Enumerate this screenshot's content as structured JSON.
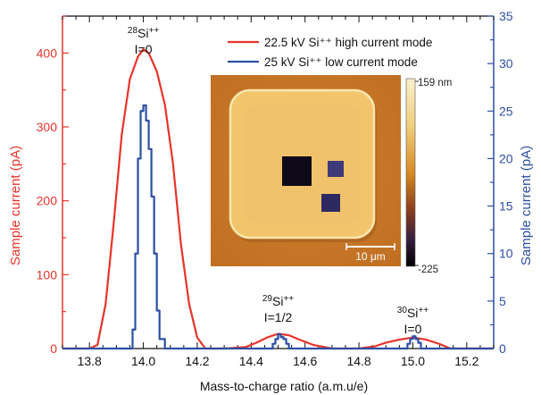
{
  "chart_data": {
    "type": "line",
    "xlabel": "Mass-to-charge ratio (a.m.u/e)",
    "ylabel_left": "Sample current (pA)",
    "ylabel_right": "Sample current (pA)",
    "xlim": [
      13.7,
      15.3
    ],
    "ylim_left": [
      0,
      450
    ],
    "ylim_right": [
      0,
      35
    ],
    "x_ticks": [
      "13.8",
      "14.0",
      "14.2",
      "14.4",
      "14.6",
      "14.8",
      "15.0",
      "15.2"
    ],
    "y_ticks_left": [
      "0",
      "100",
      "200",
      "300",
      "400"
    ],
    "y_ticks_right": [
      "0",
      "5",
      "10",
      "15",
      "20",
      "25",
      "30",
      "35"
    ],
    "legend_position": "top-right",
    "colors": {
      "red": "#e8332a",
      "blue": "#2c4fa3"
    },
    "series": [
      {
        "name": "22.5 kV Si⁺⁺ high current mode",
        "axis": "left",
        "color": "#e8332a",
        "x": [
          13.7,
          13.8,
          13.83,
          13.86,
          13.89,
          13.92,
          13.95,
          13.98,
          14.0,
          14.02,
          14.05,
          14.08,
          14.11,
          14.14,
          14.17,
          14.2,
          14.23,
          14.3,
          14.38,
          14.42,
          14.46,
          14.5,
          14.54,
          14.58,
          14.63,
          14.7,
          14.8,
          14.86,
          14.9,
          14.95,
          15.0,
          15.05,
          15.1,
          15.14,
          15.3
        ],
        "values": [
          0,
          0,
          5,
          60,
          170,
          290,
          365,
          395,
          405,
          400,
          375,
          330,
          250,
          140,
          60,
          15,
          0,
          0,
          2,
          8,
          15,
          20,
          18,
          12,
          5,
          0,
          0,
          3,
          8,
          12,
          15,
          12,
          6,
          0,
          0
        ]
      },
      {
        "name": "25 kV Si⁺⁺ low current mode",
        "axis": "right",
        "color": "#2c4fa3",
        "x": [
          13.7,
          13.95,
          13.96,
          13.97,
          13.98,
          13.99,
          14.0,
          14.01,
          14.02,
          14.03,
          14.04,
          14.05,
          14.06,
          14.08,
          14.47,
          14.48,
          14.49,
          14.5,
          14.51,
          14.52,
          14.53,
          14.54,
          14.97,
          14.98,
          14.99,
          15.0,
          15.01,
          15.02,
          15.03,
          15.3
        ],
        "values": [
          0,
          0,
          2,
          10,
          20,
          25,
          25.6,
          24,
          21,
          16,
          10,
          4,
          1,
          0,
          0,
          0.5,
          1,
          1.5,
          1.2,
          1,
          0.5,
          0,
          0,
          0.5,
          1,
          1.3,
          1,
          0.6,
          0,
          0
        ]
      }
    ],
    "annotations": [
      {
        "id": "si28",
        "isotope_mass": "28",
        "ion": "Si",
        "charge": "++",
        "spin": "I=0",
        "x": 14.0
      },
      {
        "id": "si29",
        "isotope_mass": "29",
        "ion": "Si",
        "charge": "++",
        "spin": "I=1/2",
        "x": 14.5
      },
      {
        "id": "si30",
        "isotope_mass": "30",
        "ion": "Si",
        "charge": "++",
        "spin": "I=0",
        "x": 15.0
      }
    ],
    "inset": {
      "colorbar_max": "159 nm",
      "colorbar_min": "-225",
      "scale_bar": "10 μm"
    }
  }
}
